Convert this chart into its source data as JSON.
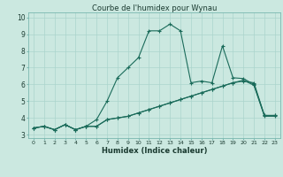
{
  "title": "Courbe de l'humidex pour Wynau",
  "xlabel": "Humidex (Indice chaleur)",
  "bg_color": "#cbe8e0",
  "line_color": "#1a6b5a",
  "grid_color": "#aad4cc",
  "xlim": [
    -0.5,
    23.5
  ],
  "ylim": [
    2.8,
    10.3
  ],
  "xticks": [
    0,
    1,
    2,
    3,
    4,
    5,
    6,
    7,
    8,
    9,
    10,
    11,
    12,
    13,
    14,
    15,
    16,
    17,
    18,
    19,
    20,
    21,
    22,
    23
  ],
  "yticks": [
    3,
    4,
    5,
    6,
    7,
    8,
    9,
    10
  ],
  "line1_x": [
    0,
    1,
    2,
    3,
    4,
    5,
    6,
    7,
    8,
    9,
    10,
    11,
    12,
    13,
    14,
    15,
    16,
    17,
    18,
    19,
    20,
    21,
    22,
    23
  ],
  "line1_y": [
    3.4,
    3.5,
    3.3,
    3.6,
    3.3,
    3.5,
    3.9,
    5.0,
    6.4,
    7.0,
    7.6,
    9.2,
    9.2,
    9.6,
    9.2,
    6.1,
    6.2,
    6.1,
    8.3,
    6.4,
    6.35,
    6.0,
    4.15,
    4.15
  ],
  "line2_x": [
    0,
    1,
    2,
    3,
    4,
    5,
    6,
    7,
    8,
    9,
    10,
    11,
    12,
    13,
    14,
    15,
    16,
    17,
    18,
    19,
    20,
    21,
    22,
    23
  ],
  "line2_y": [
    3.4,
    3.5,
    3.3,
    3.6,
    3.3,
    3.5,
    3.5,
    3.9,
    4.0,
    4.1,
    4.3,
    4.5,
    4.7,
    4.9,
    5.1,
    5.3,
    5.5,
    5.7,
    5.9,
    6.1,
    6.2,
    6.1,
    4.15,
    4.15
  ],
  "line3_x": [
    0,
    1,
    2,
    3,
    4,
    5,
    6,
    7,
    8,
    9,
    10,
    11,
    12,
    13,
    14,
    15,
    16,
    17,
    18,
    19,
    20,
    21,
    22,
    23
  ],
  "line3_y": [
    3.4,
    3.5,
    3.3,
    3.6,
    3.3,
    3.5,
    3.5,
    3.9,
    4.0,
    4.1,
    4.3,
    4.5,
    4.7,
    4.9,
    5.1,
    5.3,
    5.5,
    5.7,
    5.9,
    6.1,
    6.25,
    5.95,
    4.1,
    4.1
  ]
}
